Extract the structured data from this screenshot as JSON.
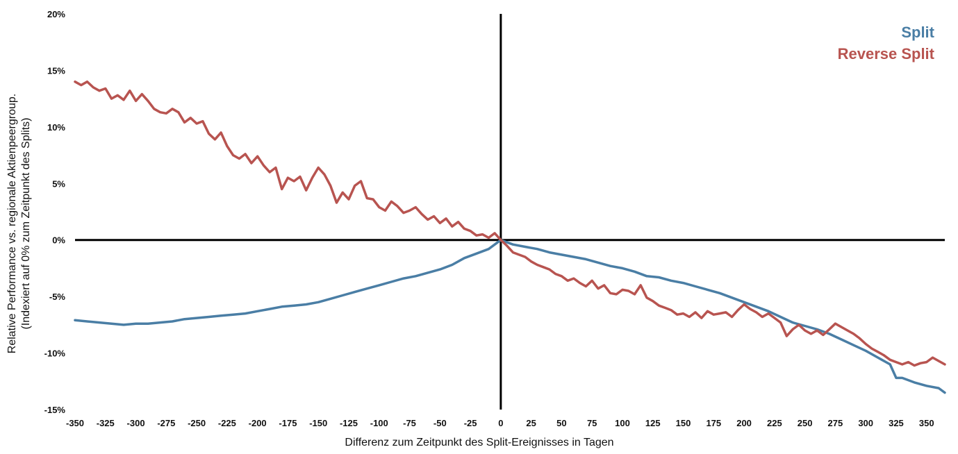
{
  "chart_data": {
    "type": "line",
    "title": "",
    "xlabel": "Differenz zum Zeitpunkt des Split-Ereignisses in Tagen",
    "ylabel_lines": [
      "Relative Performance vs. regionale Aktienpeergroup.",
      "(Indexiert auf 0% zum Zeitpunkt des Splits)"
    ],
    "xlim": [
      -350,
      365
    ],
    "ylim": [
      -15,
      20
    ],
    "x_ticks": [
      -350,
      -325,
      -300,
      -275,
      -250,
      -225,
      -200,
      -175,
      -150,
      -125,
      -100,
      -75,
      -50,
      -25,
      0,
      25,
      50,
      75,
      100,
      125,
      150,
      175,
      200,
      225,
      250,
      275,
      300,
      325,
      350
    ],
    "y_ticks": [
      20,
      15,
      10,
      5,
      0,
      -5,
      -10,
      -15
    ],
    "y_tick_labels": [
      "20%",
      "15%",
      "10%",
      "5%",
      "0%",
      "-5%",
      "-10%",
      "-15%"
    ],
    "legend_position": "top-right",
    "grid": false,
    "series": [
      {
        "name": "Split",
        "color": "#4a7ea5",
        "points": [
          [
            -350,
            -7.1
          ],
          [
            -340,
            -7.2
          ],
          [
            -330,
            -7.3
          ],
          [
            -320,
            -7.4
          ],
          [
            -310,
            -7.5
          ],
          [
            -300,
            -7.4
          ],
          [
            -290,
            -7.4
          ],
          [
            -280,
            -7.3
          ],
          [
            -270,
            -7.2
          ],
          [
            -260,
            -7.0
          ],
          [
            -250,
            -6.9
          ],
          [
            -240,
            -6.8
          ],
          [
            -230,
            -6.7
          ],
          [
            -220,
            -6.6
          ],
          [
            -210,
            -6.5
          ],
          [
            -200,
            -6.3
          ],
          [
            -190,
            -6.1
          ],
          [
            -180,
            -5.9
          ],
          [
            -170,
            -5.8
          ],
          [
            -160,
            -5.7
          ],
          [
            -150,
            -5.5
          ],
          [
            -140,
            -5.2
          ],
          [
            -130,
            -4.9
          ],
          [
            -120,
            -4.6
          ],
          [
            -110,
            -4.3
          ],
          [
            -100,
            -4.0
          ],
          [
            -90,
            -3.7
          ],
          [
            -80,
            -3.4
          ],
          [
            -70,
            -3.2
          ],
          [
            -60,
            -2.9
          ],
          [
            -50,
            -2.6
          ],
          [
            -40,
            -2.2
          ],
          [
            -30,
            -1.6
          ],
          [
            -20,
            -1.2
          ],
          [
            -10,
            -0.8
          ],
          [
            0,
            0.0
          ],
          [
            5,
            -0.2
          ],
          [
            10,
            -0.4
          ],
          [
            20,
            -0.6
          ],
          [
            30,
            -0.8
          ],
          [
            40,
            -1.1
          ],
          [
            50,
            -1.3
          ],
          [
            60,
            -1.5
          ],
          [
            70,
            -1.7
          ],
          [
            80,
            -2.0
          ],
          [
            90,
            -2.3
          ],
          [
            100,
            -2.5
          ],
          [
            110,
            -2.8
          ],
          [
            120,
            -3.2
          ],
          [
            130,
            -3.3
          ],
          [
            140,
            -3.6
          ],
          [
            150,
            -3.8
          ],
          [
            160,
            -4.1
          ],
          [
            170,
            -4.4
          ],
          [
            180,
            -4.7
          ],
          [
            190,
            -5.1
          ],
          [
            200,
            -5.5
          ],
          [
            210,
            -5.9
          ],
          [
            220,
            -6.3
          ],
          [
            230,
            -6.8
          ],
          [
            240,
            -7.3
          ],
          [
            250,
            -7.6
          ],
          [
            260,
            -7.9
          ],
          [
            270,
            -8.3
          ],
          [
            280,
            -8.8
          ],
          [
            290,
            -9.3
          ],
          [
            300,
            -9.8
          ],
          [
            310,
            -10.4
          ],
          [
            320,
            -11.0
          ],
          [
            325,
            -12.2
          ],
          [
            330,
            -12.2
          ],
          [
            340,
            -12.6
          ],
          [
            350,
            -12.9
          ],
          [
            360,
            -13.1
          ],
          [
            365,
            -13.5
          ]
        ]
      },
      {
        "name": "Reverse Split",
        "color": "#b85450",
        "points": [
          [
            -350,
            14.0
          ],
          [
            -345,
            13.7
          ],
          [
            -340,
            14.0
          ],
          [
            -335,
            13.5
          ],
          [
            -330,
            13.2
          ],
          [
            -325,
            13.4
          ],
          [
            -320,
            12.5
          ],
          [
            -315,
            12.8
          ],
          [
            -310,
            12.4
          ],
          [
            -305,
            13.2
          ],
          [
            -300,
            12.3
          ],
          [
            -295,
            12.9
          ],
          [
            -290,
            12.3
          ],
          [
            -285,
            11.6
          ],
          [
            -280,
            11.3
          ],
          [
            -275,
            11.2
          ],
          [
            -270,
            11.6
          ],
          [
            -265,
            11.3
          ],
          [
            -260,
            10.4
          ],
          [
            -255,
            10.8
          ],
          [
            -250,
            10.3
          ],
          [
            -245,
            10.5
          ],
          [
            -240,
            9.4
          ],
          [
            -235,
            8.9
          ],
          [
            -230,
            9.5
          ],
          [
            -225,
            8.3
          ],
          [
            -220,
            7.5
          ],
          [
            -215,
            7.2
          ],
          [
            -210,
            7.6
          ],
          [
            -205,
            6.8
          ],
          [
            -200,
            7.4
          ],
          [
            -195,
            6.6
          ],
          [
            -190,
            6.0
          ],
          [
            -185,
            6.4
          ],
          [
            -180,
            4.5
          ],
          [
            -175,
            5.5
          ],
          [
            -170,
            5.2
          ],
          [
            -165,
            5.6
          ],
          [
            -160,
            4.4
          ],
          [
            -155,
            5.5
          ],
          [
            -150,
            6.4
          ],
          [
            -145,
            5.8
          ],
          [
            -140,
            4.8
          ],
          [
            -135,
            3.3
          ],
          [
            -130,
            4.2
          ],
          [
            -125,
            3.6
          ],
          [
            -120,
            4.8
          ],
          [
            -115,
            5.2
          ],
          [
            -110,
            3.7
          ],
          [
            -105,
            3.6
          ],
          [
            -100,
            2.9
          ],
          [
            -95,
            2.6
          ],
          [
            -90,
            3.4
          ],
          [
            -85,
            3.0
          ],
          [
            -80,
            2.4
          ],
          [
            -75,
            2.6
          ],
          [
            -70,
            2.9
          ],
          [
            -65,
            2.3
          ],
          [
            -60,
            1.8
          ],
          [
            -55,
            2.1
          ],
          [
            -50,
            1.5
          ],
          [
            -45,
            1.9
          ],
          [
            -40,
            1.2
          ],
          [
            -35,
            1.6
          ],
          [
            -30,
            1.0
          ],
          [
            -25,
            0.8
          ],
          [
            -20,
            0.4
          ],
          [
            -15,
            0.5
          ],
          [
            -10,
            0.2
          ],
          [
            -5,
            0.6
          ],
          [
            0,
            0.0
          ],
          [
            5,
            -0.5
          ],
          [
            10,
            -1.1
          ],
          [
            15,
            -1.3
          ],
          [
            20,
            -1.5
          ],
          [
            25,
            -1.9
          ],
          [
            30,
            -2.2
          ],
          [
            35,
            -2.4
          ],
          [
            40,
            -2.6
          ],
          [
            45,
            -3.0
          ],
          [
            50,
            -3.2
          ],
          [
            55,
            -3.6
          ],
          [
            60,
            -3.4
          ],
          [
            65,
            -3.8
          ],
          [
            70,
            -4.1
          ],
          [
            75,
            -3.6
          ],
          [
            80,
            -4.3
          ],
          [
            85,
            -4.0
          ],
          [
            90,
            -4.7
          ],
          [
            95,
            -4.8
          ],
          [
            100,
            -4.4
          ],
          [
            105,
            -4.5
          ],
          [
            110,
            -4.8
          ],
          [
            115,
            -4.0
          ],
          [
            120,
            -5.1
          ],
          [
            125,
            -5.4
          ],
          [
            130,
            -5.8
          ],
          [
            135,
            -6.0
          ],
          [
            140,
            -6.2
          ],
          [
            145,
            -6.6
          ],
          [
            150,
            -6.5
          ],
          [
            155,
            -6.8
          ],
          [
            160,
            -6.4
          ],
          [
            165,
            -6.9
          ],
          [
            170,
            -6.3
          ],
          [
            175,
            -6.6
          ],
          [
            180,
            -6.5
          ],
          [
            185,
            -6.4
          ],
          [
            190,
            -6.8
          ],
          [
            195,
            -6.2
          ],
          [
            200,
            -5.7
          ],
          [
            205,
            -6.1
          ],
          [
            210,
            -6.4
          ],
          [
            215,
            -6.8
          ],
          [
            220,
            -6.5
          ],
          [
            225,
            -6.9
          ],
          [
            230,
            -7.3
          ],
          [
            235,
            -8.5
          ],
          [
            240,
            -7.9
          ],
          [
            245,
            -7.5
          ],
          [
            250,
            -8.0
          ],
          [
            255,
            -8.3
          ],
          [
            260,
            -8.0
          ],
          [
            265,
            -8.4
          ],
          [
            270,
            -7.9
          ],
          [
            275,
            -7.4
          ],
          [
            280,
            -7.7
          ],
          [
            285,
            -8.0
          ],
          [
            290,
            -8.3
          ],
          [
            295,
            -8.7
          ],
          [
            300,
            -9.2
          ],
          [
            305,
            -9.6
          ],
          [
            310,
            -9.9
          ],
          [
            315,
            -10.2
          ],
          [
            320,
            -10.6
          ],
          [
            325,
            -10.8
          ],
          [
            330,
            -11.0
          ],
          [
            335,
            -10.8
          ],
          [
            340,
            -11.1
          ],
          [
            345,
            -10.9
          ],
          [
            350,
            -10.8
          ],
          [
            355,
            -10.4
          ],
          [
            360,
            -10.7
          ],
          [
            365,
            -11.0
          ]
        ]
      }
    ]
  }
}
